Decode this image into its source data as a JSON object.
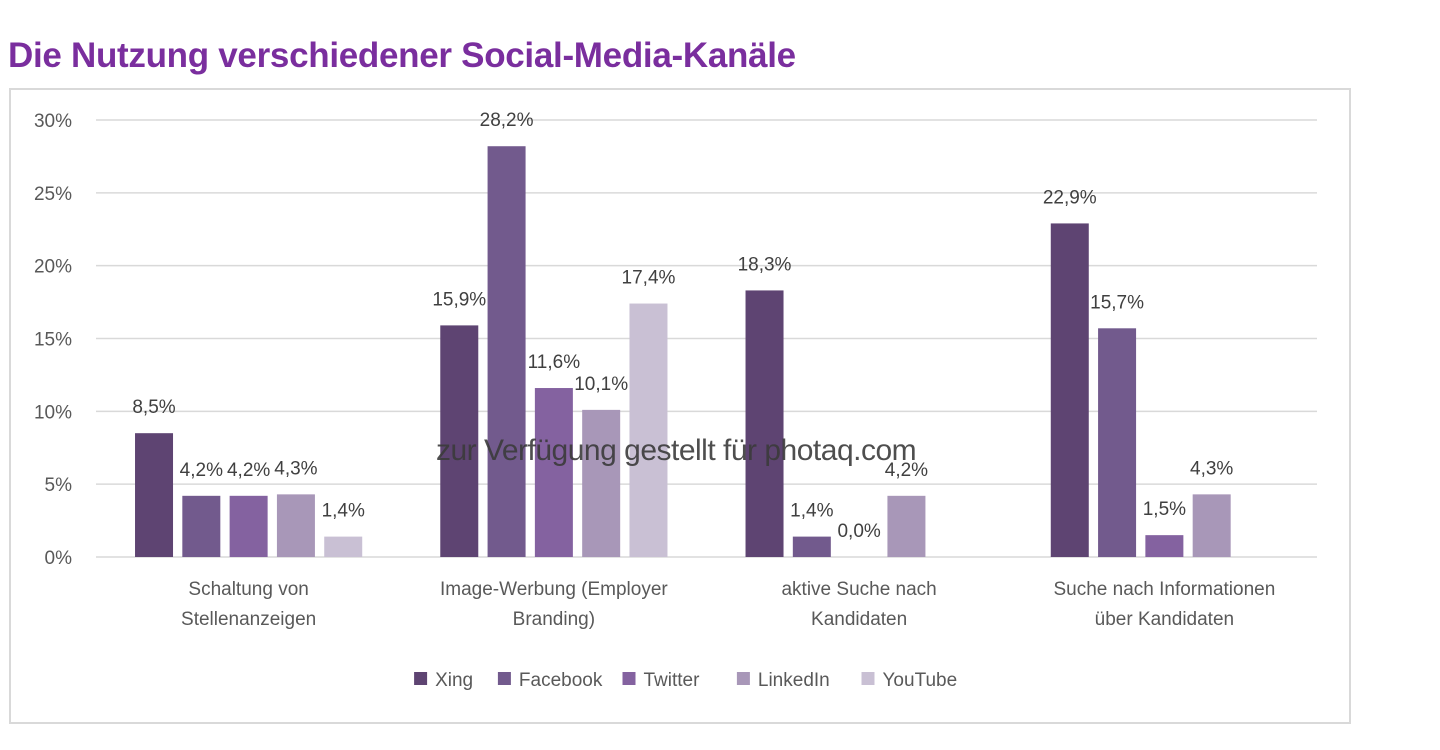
{
  "title": "Die Nutzung verschiedener Social-Media-Kanäle",
  "watermark": "zur Verfügung gestellt für photaq.com",
  "colors": {
    "Xing": "#5e4472",
    "Facebook": "#725a8d",
    "Twitter": "#8462a0",
    "LinkedIn": "#a897b8",
    "YouTube": "#c9c0d4",
    "title": "#7a2e9e",
    "grid": "#d9d9d9",
    "text": "#595959"
  },
  "chart_data": {
    "type": "bar",
    "categories": [
      [
        "Schaltung von",
        "Stellenanzeigen"
      ],
      [
        "Image-Werbung (Employer",
        "Branding)"
      ],
      [
        "aktive Suche nach",
        "Kandidaten"
      ],
      [
        "Suche nach Informationen",
        "über Kandidaten"
      ]
    ],
    "series": [
      {
        "name": "Xing",
        "values": [
          8.5,
          15.9,
          18.3,
          22.9
        ],
        "labels": [
          "8,5%",
          "15,9%",
          "18,3%",
          "22,9%"
        ]
      },
      {
        "name": "Facebook",
        "values": [
          4.2,
          28.2,
          1.4,
          15.7
        ],
        "labels": [
          "4,2%",
          "28,2%",
          "1,4%",
          "15,7%"
        ]
      },
      {
        "name": "Twitter",
        "values": [
          4.2,
          11.6,
          0.0,
          1.5
        ],
        "labels": [
          "4,2%",
          "11,6%",
          "0,0%",
          "1,5%"
        ]
      },
      {
        "name": "LinkedIn",
        "values": [
          4.3,
          10.1,
          4.2,
          4.3
        ],
        "labels": [
          "4,3%",
          "10,1%",
          "4,2%",
          "4,3%"
        ]
      },
      {
        "name": "YouTube",
        "values": [
          1.4,
          17.4,
          null,
          null
        ],
        "labels": [
          "1,4%",
          "17,4%",
          null,
          null
        ]
      }
    ],
    "yticks": [
      "0%",
      "5%",
      "10%",
      "15%",
      "20%",
      "25%",
      "30%"
    ],
    "ylim": [
      0,
      30
    ],
    "grid": true,
    "legend": "bottom"
  }
}
